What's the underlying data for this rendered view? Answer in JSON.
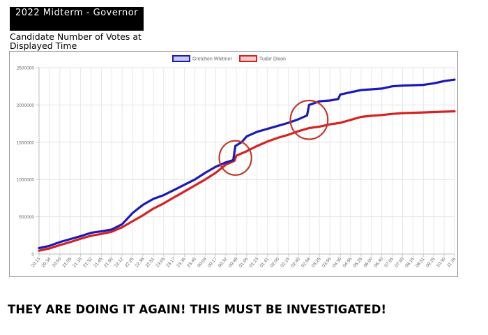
{
  "header": {
    "title": "2022 Midterm - Governor",
    "subtitle": "Candidate Number of Votes at Displayed Time"
  },
  "footer": {
    "headline": "THEY ARE DOING IT AGAIN!  THIS MUST BE INVESTIGATED!"
  },
  "chart_data": {
    "type": "line",
    "title": "",
    "xlabel": "",
    "ylabel": "",
    "ylim": [
      0,
      2500000
    ],
    "y_ticks": [
      "0",
      "500000",
      "1000000",
      "1500000",
      "2000000",
      "2500000"
    ],
    "x_ticks": [
      "20:13",
      "20:34",
      "20:50",
      "21:05",
      "21:18",
      "21:32",
      "21:45",
      "21:59",
      "22:12",
      "22:25",
      "22:38",
      "22:51",
      "23:05",
      "23:17",
      "23:35",
      "23:49",
      "00:04",
      "00:17",
      "00:32",
      "00:48",
      "01:06",
      "01:23",
      "01:41",
      "02:00",
      "02:15",
      "02:40",
      "02:58",
      "03:25",
      "03:55",
      "04:30",
      "04:55",
      "05:25",
      "06:00",
      "06:30",
      "07:05",
      "07:40",
      "08:15",
      "08:51",
      "09:25",
      "10:30",
      "11:26"
    ],
    "grid": true,
    "legend_position": "top-center",
    "colors": {
      "gretchen": "#1a1ab8",
      "tudor": "#d62222",
      "circle": "#c0392b"
    },
    "series": [
      {
        "name": "Gretchen Whitmer",
        "values": [
          [
            0,
            80000
          ],
          [
            1,
            110000
          ],
          [
            2,
            160000
          ],
          [
            3,
            200000
          ],
          [
            4,
            240000
          ],
          [
            5,
            285000
          ],
          [
            6,
            305000
          ],
          [
            7,
            330000
          ],
          [
            8,
            400000
          ],
          [
            9,
            550000
          ],
          [
            10,
            660000
          ],
          [
            11,
            740000
          ],
          [
            12,
            790000
          ],
          [
            13,
            860000
          ],
          [
            14,
            930000
          ],
          [
            15,
            1000000
          ],
          [
            16,
            1090000
          ],
          [
            17,
            1170000
          ],
          [
            18,
            1230000
          ],
          [
            18.7,
            1260000
          ],
          [
            18.9,
            1450000
          ],
          [
            19.5,
            1500000
          ],
          [
            20,
            1580000
          ],
          [
            21,
            1640000
          ],
          [
            22,
            1680000
          ],
          [
            23,
            1720000
          ],
          [
            24,
            1760000
          ],
          [
            25,
            1810000
          ],
          [
            25.8,
            1860000
          ],
          [
            26,
            2000000
          ],
          [
            27,
            2050000
          ],
          [
            28,
            2060000
          ],
          [
            28.8,
            2080000
          ],
          [
            29,
            2140000
          ],
          [
            30,
            2170000
          ],
          [
            31,
            2200000
          ],
          [
            32,
            2210000
          ],
          [
            33,
            2220000
          ],
          [
            34,
            2250000
          ],
          [
            35,
            2260000
          ],
          [
            36,
            2265000
          ],
          [
            37,
            2270000
          ],
          [
            38,
            2290000
          ],
          [
            39,
            2320000
          ],
          [
            40,
            2340000
          ]
        ]
      },
      {
        "name": "Tudor Dixon",
        "values": [
          [
            0,
            45000
          ],
          [
            1,
            75000
          ],
          [
            2,
            120000
          ],
          [
            3,
            160000
          ],
          [
            4,
            205000
          ],
          [
            5,
            245000
          ],
          [
            6,
            270000
          ],
          [
            7,
            300000
          ],
          [
            8,
            360000
          ],
          [
            9,
            440000
          ],
          [
            10,
            520000
          ],
          [
            11,
            610000
          ],
          [
            12,
            680000
          ],
          [
            13,
            760000
          ],
          [
            14,
            840000
          ],
          [
            15,
            920000
          ],
          [
            16,
            1000000
          ],
          [
            17,
            1090000
          ],
          [
            18,
            1200000
          ],
          [
            18.8,
            1250000
          ],
          [
            19,
            1320000
          ],
          [
            20,
            1380000
          ],
          [
            21,
            1450000
          ],
          [
            22,
            1510000
          ],
          [
            23,
            1560000
          ],
          [
            24,
            1600000
          ],
          [
            25,
            1650000
          ],
          [
            26,
            1690000
          ],
          [
            27,
            1710000
          ],
          [
            28,
            1740000
          ],
          [
            29,
            1760000
          ],
          [
            30,
            1800000
          ],
          [
            31,
            1840000
          ],
          [
            32,
            1855000
          ],
          [
            33,
            1865000
          ],
          [
            34,
            1880000
          ],
          [
            35,
            1890000
          ],
          [
            36,
            1895000
          ],
          [
            37,
            1900000
          ],
          [
            38,
            1905000
          ],
          [
            39,
            1910000
          ],
          [
            40,
            1915000
          ]
        ]
      }
    ],
    "annotations": [
      {
        "shape": "ellipse",
        "cx": 18.9,
        "cy": 1290000,
        "rx": 1.55,
        "ry": 230000
      },
      {
        "shape": "ellipse",
        "cx": 26.0,
        "cy": 1800000,
        "rx": 1.8,
        "ry": 260000
      }
    ]
  }
}
